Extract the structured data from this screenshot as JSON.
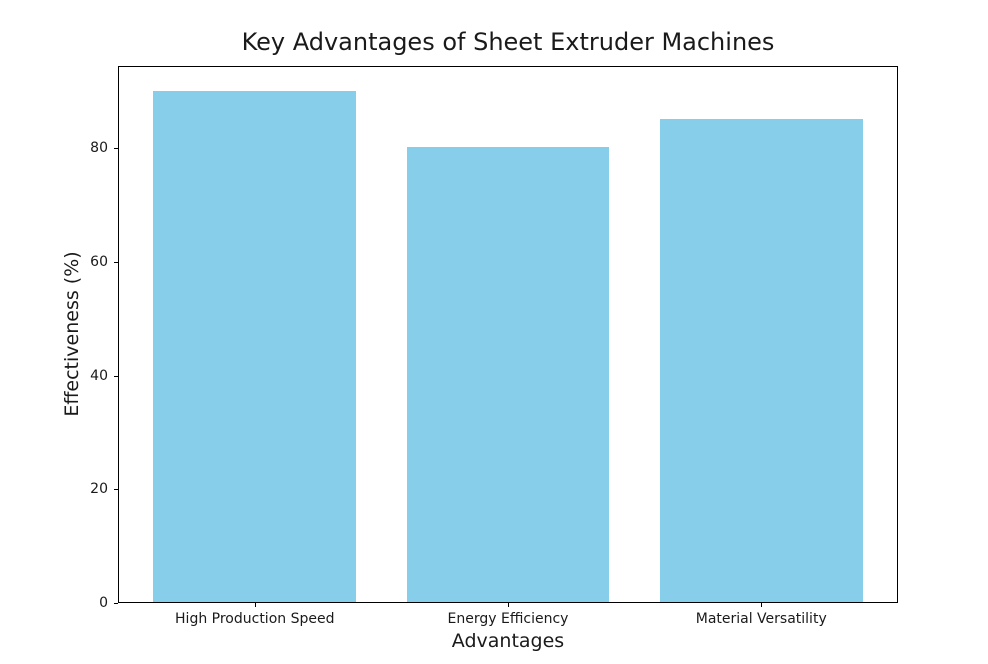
{
  "figure": {
    "background": "#ffffff"
  },
  "chart_data": {
    "type": "bar",
    "title": "Key Advantages of Sheet Extruder Machines",
    "categories": [
      "High Production Speed",
      "Energy Efficiency",
      "Material Versatility"
    ],
    "values": [
      90,
      80,
      85
    ],
    "xlabel": "Advantages",
    "ylabel": "Effectiveness (%)",
    "ylim": [
      0,
      94.5
    ],
    "yticks": [
      0,
      20,
      40,
      60,
      80
    ],
    "bar_color": "#87CEEB",
    "axis_color": "#000000",
    "text_color": "#1a1a1a",
    "grid": false,
    "legend_position": "none",
    "bar_width_fraction": 0.8
  }
}
